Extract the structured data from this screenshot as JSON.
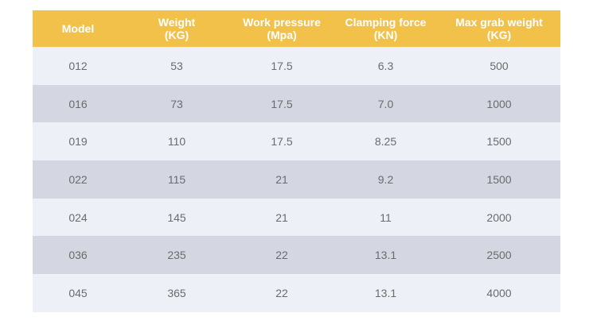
{
  "table": {
    "headers": [
      {
        "line1": "Model",
        "line2": ""
      },
      {
        "line1": "Weight",
        "line2": "(KG)"
      },
      {
        "line1": "Work pressure",
        "line2": "(Mpa)"
      },
      {
        "line1": "Clamping force",
        "line2": "(KN)"
      },
      {
        "line1": "Max grab weight",
        "line2": "(KG)"
      }
    ],
    "rows": [
      [
        "012",
        "53",
        "17.5",
        "6.3",
        "500"
      ],
      [
        "016",
        "73",
        "17.5",
        "7.0",
        "1000"
      ],
      [
        "019",
        "110",
        "17.5",
        "8.25",
        "1500"
      ],
      [
        "022",
        "115",
        "21",
        "9.2",
        "1500"
      ],
      [
        "024",
        "145",
        "21",
        "11",
        "2000"
      ],
      [
        "036",
        "235",
        "22",
        "13.1",
        "2500"
      ],
      [
        "045",
        "365",
        "22",
        "13.1",
        "4000"
      ]
    ]
  },
  "colors": {
    "header_bg": "#f1c14a",
    "header_text": "#ffffff",
    "row_light": "#eef0f8",
    "row_dark": "#d4d7e1",
    "cell_text": "#6b6b6b"
  }
}
